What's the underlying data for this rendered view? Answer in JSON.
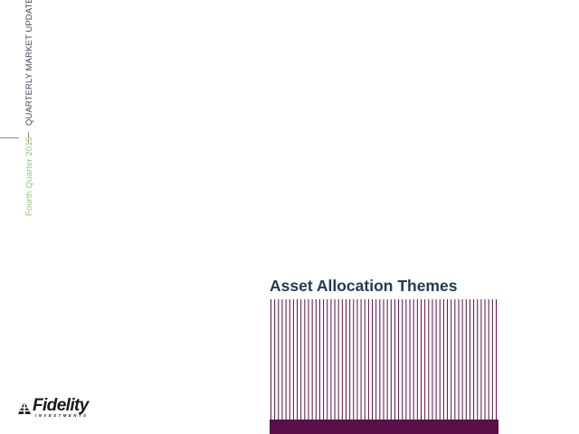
{
  "sidebar": {
    "report_name": "QUARTERLY MARKET UPDATE",
    "period": "Fourth Quarter 2015"
  },
  "section": {
    "title": "Asset Allocation Themes"
  },
  "brand": {
    "name": "Fidelity",
    "subtitle": "INVESTMENTS",
    "logo_icon": "fidelity-pyramid-icon"
  },
  "colors": {
    "accent": "#5b0f48",
    "title": "#233b52",
    "period_text": "#9bc27a",
    "report_text": "#404a56"
  }
}
